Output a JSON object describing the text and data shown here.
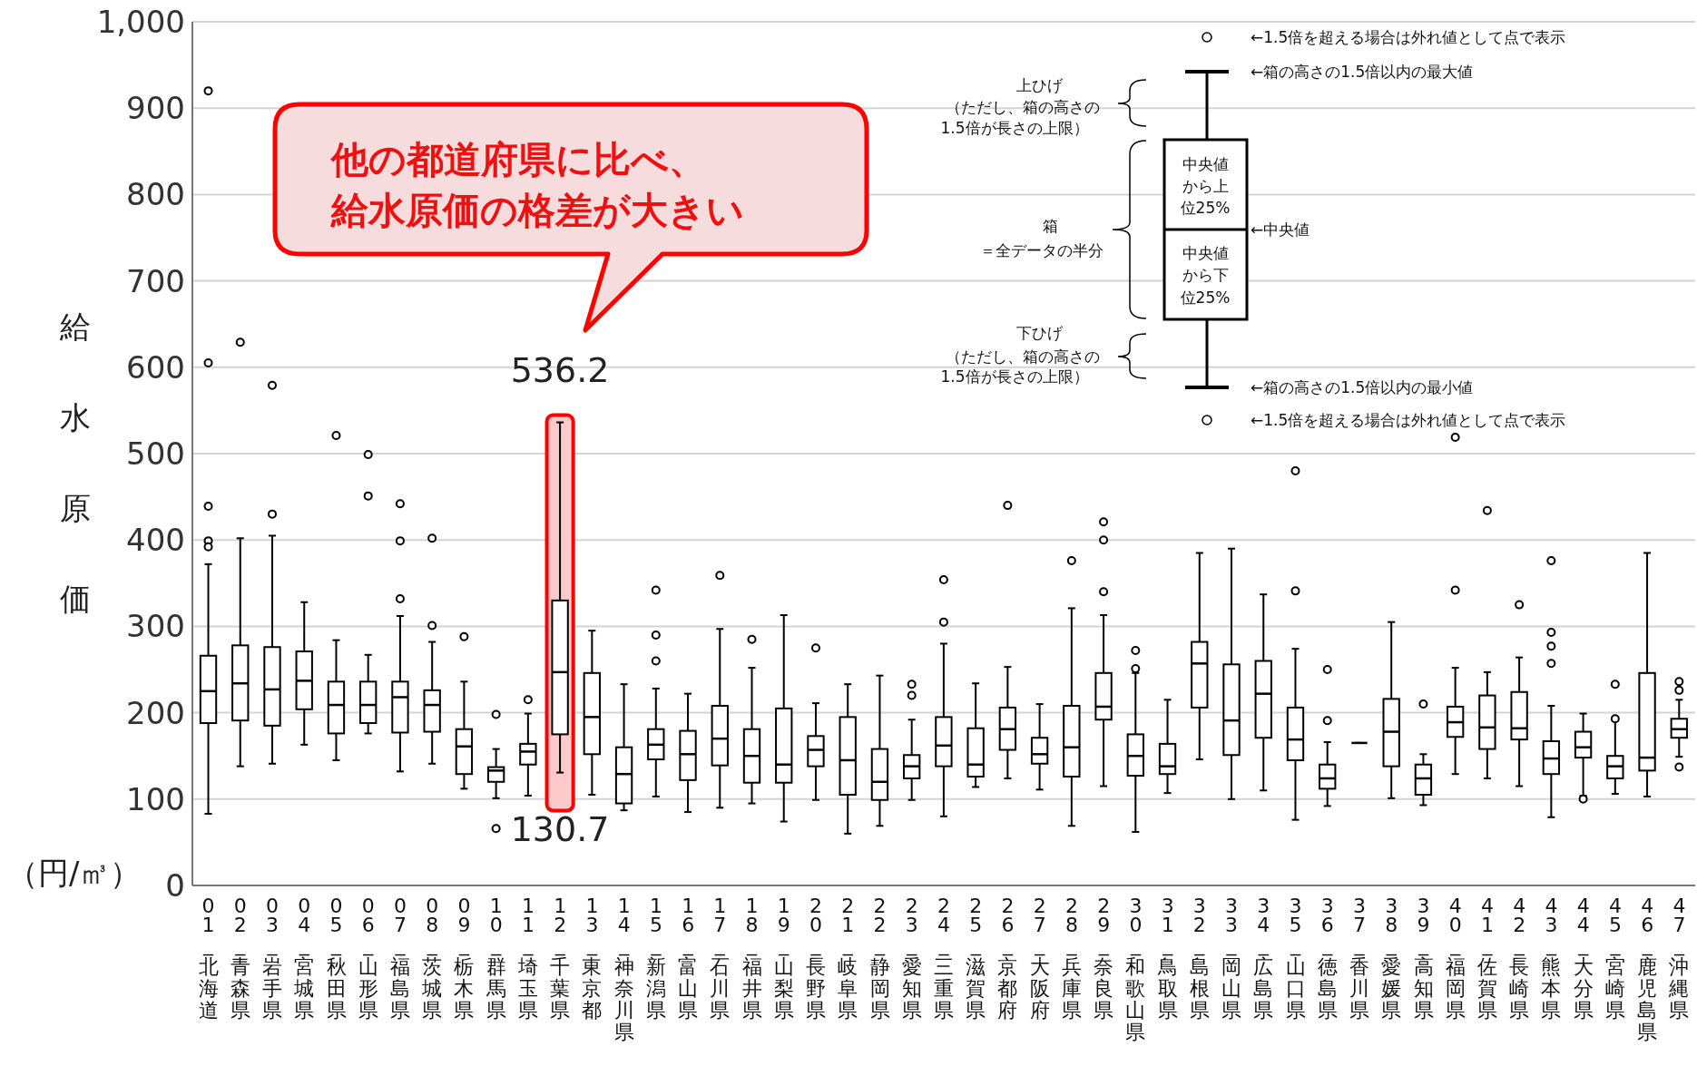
{
  "chart_data": {
    "type": "box",
    "ylabel": "給水原価",
    "color": "#000000",
    "categories": [
      "01_北海道",
      "02_青森県",
      "03_岩手県",
      "04_宮城県",
      "05_秋田県",
      "06_山形県",
      "07_福島県",
      "08_茨城県",
      "09_栃木県",
      "10_群馬県",
      "11_埼玉県",
      "12_千葉県",
      "13_東京都",
      "14_神奈川県",
      "15_新潟県",
      "16_富山県",
      "17_石川県",
      "18_福井県",
      "19_山梨県",
      "20_長野県",
      "21_岐阜県",
      "22_静岡県",
      "23_愛知県",
      "24_三重県",
      "25_滋賀県",
      "26_京都府",
      "27_大阪府",
      "28_兵庫県",
      "29_奈良県",
      "30_和歌山県",
      "31_鳥取県",
      "32_島根県",
      "33_岡山県",
      "34_広島県",
      "35_山口県",
      "36_徳島県",
      "37_香川県",
      "38_愛媛県",
      "39_高知県",
      "40_福岡県",
      "41_佐賀県",
      "42_長崎県",
      "43_熊本県",
      "44_大分県",
      "45_宮崎県",
      "46_鹿児島県",
      "47_沖縄県"
    ],
    "boxes": [
      {
        "low": 83,
        "q1": 188,
        "median": 225,
        "q3": 266,
        "high": 372,
        "outliers": [
          920,
          605,
          439,
          399,
          392
        ]
      },
      {
        "low": 138,
        "q1": 191,
        "median": 234,
        "q3": 278,
        "high": 402,
        "outliers": [
          629
        ]
      },
      {
        "low": 141,
        "q1": 185,
        "median": 227,
        "q3": 276,
        "high": 405,
        "outliers": [
          579,
          430
        ]
      },
      {
        "low": 163,
        "q1": 204,
        "median": 237,
        "q3": 271,
        "high": 328
      },
      {
        "low": 145,
        "q1": 176,
        "median": 209,
        "q3": 236,
        "high": 284,
        "outliers": [
          521
        ]
      },
      {
        "low": 176,
        "q1": 188,
        "median": 209,
        "q3": 236,
        "high": 267,
        "outliers": [
          499,
          451
        ]
      },
      {
        "low": 132,
        "q1": 177,
        "median": 218,
        "q3": 236,
        "high": 312,
        "outliers": [
          442,
          399,
          332
        ]
      },
      {
        "low": 141,
        "q1": 178,
        "median": 209,
        "q3": 226,
        "high": 282,
        "outliers": [
          402,
          301
        ]
      },
      {
        "low": 112,
        "q1": 129,
        "median": 161,
        "q3": 181,
        "high": 236,
        "outliers": [
          288
        ]
      },
      {
        "low": 101,
        "q1": 120,
        "median": 133,
        "q3": 137,
        "high": 158,
        "outliers": [
          198,
          66
        ]
      },
      {
        "low": 104,
        "q1": 140,
        "median": 155,
        "q3": 164,
        "high": 199,
        "outliers": [
          215
        ]
      },
      {
        "low": 130.7,
        "q1": 175,
        "median": 247,
        "q3": 330,
        "high": 536.2
      },
      {
        "low": 105,
        "q1": 152,
        "median": 195,
        "q3": 246,
        "high": 295
      },
      {
        "low": 87,
        "q1": 95,
        "median": 129,
        "q3": 160,
        "high": 233
      },
      {
        "low": 103,
        "q1": 146,
        "median": 163,
        "q3": 181,
        "high": 228,
        "outliers": [
          342,
          290,
          260
        ]
      },
      {
        "low": 85,
        "q1": 122,
        "median": 152,
        "q3": 179,
        "high": 222
      },
      {
        "low": 90,
        "q1": 139,
        "median": 170,
        "q3": 208,
        "high": 297,
        "outliers": [
          359
        ]
      },
      {
        "low": 95,
        "q1": 119,
        "median": 150,
        "q3": 181,
        "high": 252,
        "outliers": [
          285
        ]
      },
      {
        "low": 74,
        "q1": 119,
        "median": 140,
        "q3": 205,
        "high": 313
      },
      {
        "low": 99,
        "q1": 138,
        "median": 157,
        "q3": 173,
        "high": 211,
        "outliers": [
          275
        ]
      },
      {
        "low": 60,
        "q1": 105,
        "median": 145,
        "q3": 195,
        "high": 233
      },
      {
        "low": 69,
        "q1": 99,
        "median": 120,
        "q3": 158,
        "high": 243
      },
      {
        "low": 99,
        "q1": 124,
        "median": 138,
        "q3": 151,
        "high": 192,
        "outliers": [
          233,
          220
        ]
      },
      {
        "low": 80,
        "q1": 138,
        "median": 162,
        "q3": 195,
        "high": 280,
        "outliers": [
          354,
          305
        ]
      },
      {
        "low": 114,
        "q1": 126,
        "median": 140,
        "q3": 182,
        "high": 234
      },
      {
        "low": 124,
        "q1": 157,
        "median": 181,
        "q3": 206,
        "high": 253,
        "outliers": [
          440
        ]
      },
      {
        "low": 111,
        "q1": 141,
        "median": 152,
        "q3": 171,
        "high": 210
      },
      {
        "low": 69,
        "q1": 126,
        "median": 160,
        "q3": 208,
        "high": 321,
        "outliers": [
          376
        ]
      },
      {
        "low": 115,
        "q1": 192,
        "median": 207,
        "q3": 246,
        "high": 313,
        "outliers": [
          421,
          400,
          340
        ]
      },
      {
        "low": 62,
        "q1": 127,
        "median": 150,
        "q3": 175,
        "high": 246,
        "outliers": [
          272,
          251
        ]
      },
      {
        "low": 107,
        "q1": 129,
        "median": 138,
        "q3": 164,
        "high": 215
      },
      {
        "low": 146,
        "q1": 206,
        "median": 257,
        "q3": 282,
        "high": 385
      },
      {
        "low": 100,
        "q1": 151,
        "median": 191,
        "q3": 256,
        "high": 390
      },
      {
        "low": 110,
        "q1": 171,
        "median": 222,
        "q3": 260,
        "high": 337
      },
      {
        "low": 76,
        "q1": 145,
        "median": 169,
        "q3": 206,
        "high": 274,
        "outliers": [
          480,
          341
        ]
      },
      {
        "low": 92,
        "q1": 112,
        "median": 124,
        "q3": 140,
        "high": 166,
        "outliers": [
          250,
          191
        ]
      },
      {
        "low": 165,
        "q1": 165,
        "median": 165,
        "q3": 165,
        "high": 165
      },
      {
        "low": 101,
        "q1": 138,
        "median": 178,
        "q3": 216,
        "high": 305
      },
      {
        "low": 93,
        "q1": 105,
        "median": 124,
        "q3": 140,
        "high": 152,
        "outliers": [
          210
        ]
      },
      {
        "low": 129,
        "q1": 172,
        "median": 189,
        "q3": 207,
        "high": 252,
        "outliers": [
          519,
          342
        ]
      },
      {
        "low": 124,
        "q1": 158,
        "median": 183,
        "q3": 220,
        "high": 247,
        "outliers": [
          434
        ]
      },
      {
        "low": 115,
        "q1": 169,
        "median": 182,
        "q3": 224,
        "high": 264,
        "outliers": [
          325
        ]
      },
      {
        "low": 79,
        "q1": 129,
        "median": 147,
        "q3": 167,
        "high": 208,
        "outliers": [
          376,
          293,
          277,
          257
        ]
      },
      {
        "low": 104,
        "q1": 148,
        "median": 160,
        "q3": 178,
        "high": 199,
        "outliers": [
          100
        ]
      },
      {
        "low": 106,
        "q1": 124,
        "median": 138,
        "q3": 150,
        "high": 193,
        "outliers": [
          233,
          193
        ]
      },
      {
        "low": 103,
        "q1": 133,
        "median": 148,
        "q3": 246,
        "high": 385
      },
      {
        "low": 149,
        "q1": 171,
        "median": 181,
        "q3": 193,
        "high": 215,
        "outliers": [
          236,
          226,
          137
        ]
      }
    ],
    "ylim": [
      0,
      1000
    ],
    "yticks": [
      0,
      100,
      200,
      300,
      400,
      500,
      600,
      700,
      800,
      900,
      {
        "value": 1000,
        "label": "1,000"
      }
    ],
    "grid": "y",
    "bands": [
      {
        "axis": "x",
        "from": "12_千葉県",
        "to": "12_千葉県",
        "color": "#ffc9c9"
      }
    ],
    "annotations": [
      "他の都道府県に比べ、",
      "給水原価の格差が大きい",
      {
        "text": "536.2",
        "x": "12_千葉県",
        "y": 536.2
      },
      {
        "text": "130.7",
        "x": "12_千葉県",
        "y": 130.7
      },
      "（円/㎥）",
      "←1.5倍を超える場合は外れ値として点で表示",
      "←箱の高さの1.5倍以内の最大値",
      "上ひげ",
      "（ただし、箱の高さの",
      "1.5倍が長さの上限）",
      "中央値",
      "から上",
      "位25%",
      "←中央値",
      "箱",
      "＝全データの半分",
      "中央値",
      "から下",
      "位25%",
      "下ひげ",
      "（ただし、箱の高さの",
      "1.5倍が長さの上限）",
      "←箱の高さの1.5倍以内の最小値",
      "←1.5倍を超える場合は外れ値として点で表示"
    ]
  }
}
